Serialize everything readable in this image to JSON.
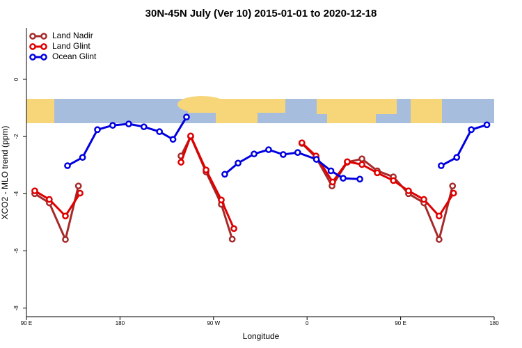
{
  "chart_data": {
    "type": "line",
    "title": "30N-45N July (Ver 10)   2015-01-01 to 2020-12-18",
    "x_label": "Longitude",
    "y_label": "XCO2 - MLO trend (ppm)",
    "xlim": [
      90,
      540
    ],
    "xticks": [
      {
        "value": 90,
        "label": "90 E"
      },
      {
        "value": 180,
        "label": "180"
      },
      {
        "value": 270,
        "label": "90 W"
      },
      {
        "value": 360,
        "label": "0"
      },
      {
        "value": 450,
        "label": "90 E"
      },
      {
        "value": 540,
        "label": "180"
      }
    ],
    "ylim": [
      -8.3,
      1.8
    ],
    "yticks": [
      -8,
      -6,
      -4,
      -2,
      0
    ],
    "legend": "top-left",
    "series": [
      {
        "name": "Land Nadir",
        "color": "#a52a2a",
        "x": [
          98,
          112,
          127.5,
          140,
          null,
          238.7,
          248,
          262.8,
          277.5,
          288,
          null,
          355,
          368.6,
          384,
          398.7,
          412.8,
          427.5,
          443,
          457.6,
          472.4,
          487,
          500
        ],
        "values": [
          -4.0,
          -4.32,
          -5.6,
          -3.73,
          null,
          -2.68,
          -2.0,
          -3.24,
          -4.37,
          -5.59,
          null,
          -2.24,
          -2.73,
          -3.73,
          -2.9,
          -2.78,
          -3.2,
          -3.41,
          -4.0,
          -4.32,
          -5.6,
          -3.73
        ]
      },
      {
        "name": "Land Glint",
        "color": "#e00000",
        "x": [
          98,
          112,
          127.5,
          141.6,
          null,
          238.7,
          248,
          262.8,
          277.5,
          289.6,
          null,
          355,
          368.6,
          384.6,
          398.7,
          412.8,
          427.5,
          443,
          457.6,
          472.4,
          487,
          501
        ],
        "values": [
          -3.9,
          -4.2,
          -4.78,
          -3.98,
          null,
          -2.9,
          -1.98,
          -3.17,
          -4.22,
          -5.22,
          null,
          -2.22,
          -2.68,
          -3.59,
          -2.88,
          -2.98,
          -3.27,
          -3.54,
          -3.9,
          -4.2,
          -4.78,
          -3.98
        ]
      },
      {
        "name": "Ocean Glint",
        "color": "#0000e0",
        "x": [
          129.5,
          144,
          158.3,
          173,
          188.4,
          203,
          218,
          231,
          244,
          null,
          280.8,
          293.6,
          309,
          323,
          337,
          351,
          369,
          383,
          394.7,
          410.8,
          null,
          489,
          504,
          518,
          533
        ],
        "values": [
          -3.02,
          -2.73,
          -1.76,
          -1.61,
          -1.56,
          -1.66,
          -1.83,
          -2.1,
          -1.32,
          null,
          -3.32,
          -2.93,
          -2.61,
          -2.46,
          -2.63,
          -2.56,
          -2.8,
          -3.2,
          -3.46,
          -3.49,
          null,
          -3.02,
          -2.73,
          -1.76,
          -1.59
        ]
      }
    ]
  }
}
